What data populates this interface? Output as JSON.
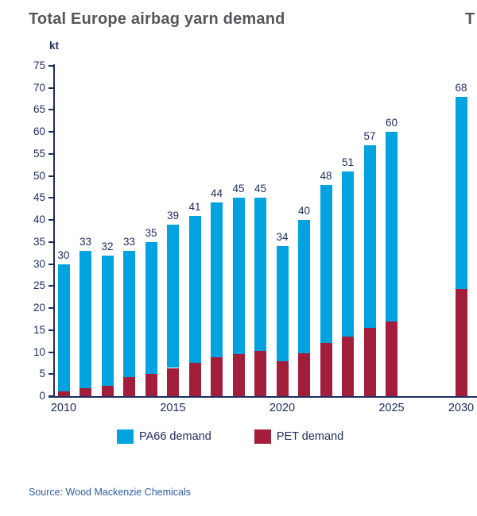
{
  "title": "Total Europe airbag yarn demand",
  "adjacent_title_fragment": "T",
  "y_axis": {
    "unit_label": "kt",
    "min": 0,
    "max": 75,
    "step": 5
  },
  "source": "Source: Wood Mackenzie Chemicals",
  "colors": {
    "pa66_blue": "#00A3E0",
    "pet_red": "#A21E3A",
    "axis_navy": "#1F2C5C",
    "title_gray": "#56575B",
    "source_blue": "#2E5CA8"
  },
  "legend": {
    "items": [
      {
        "label": "PA66 demand",
        "color": "#00A3E0"
      },
      {
        "label": "PET demand",
        "color": "#A21E3A"
      }
    ]
  },
  "chart_data": {
    "type": "bar",
    "stacked": true,
    "title": "Total Europe airbag yarn demand",
    "ylabel": "kt",
    "ylim": [
      0,
      75
    ],
    "ytick_step": 5,
    "grid": false,
    "legend_position": "bottom",
    "categories": [
      "2010",
      "2011",
      "2012",
      "2013",
      "2014",
      "2015",
      "2016",
      "2017",
      "2018",
      "2019",
      "2020",
      "2021",
      "2022",
      "2023",
      "2024",
      "2025",
      "2030"
    ],
    "x_axis_tick_labels": [
      "2010",
      "2015",
      "2020",
      "2025",
      "2030"
    ],
    "bar_total_labels": [
      30,
      33,
      32,
      33,
      35,
      39,
      41,
      44,
      45,
      45,
      34,
      40,
      48,
      51,
      57,
      60,
      68
    ],
    "series": [
      {
        "name": "PA66 demand",
        "color": "#00A3E0",
        "values": [
          29.0,
          31.2,
          29.7,
          28.7,
          30.0,
          32.6,
          33.5,
          35.2,
          35.5,
          34.7,
          26.0,
          30.2,
          36.0,
          37.5,
          41.5,
          43.0,
          43.7
        ]
      },
      {
        "name": "PET demand",
        "color": "#A21E3A",
        "values": [
          1.0,
          1.8,
          2.3,
          4.3,
          5.0,
          6.4,
          7.5,
          8.8,
          9.5,
          10.3,
          8.0,
          9.8,
          12.0,
          13.5,
          15.5,
          17.0,
          24.3
        ]
      }
    ],
    "stack_bottom_to_top": [
      "PET demand",
      "PA66 demand"
    ]
  }
}
